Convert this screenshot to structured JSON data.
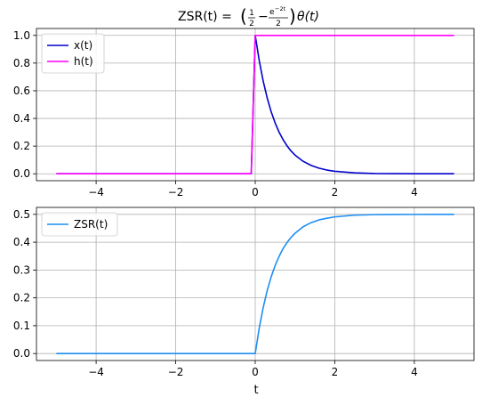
{
  "chart_data": [
    {
      "type": "line",
      "title": "ZSR(t) = (1/2 − e^(−2t)/2)θ(t)",
      "title_parts": {
        "prefix": "ZSR(t) = ",
        "frac1_num": "1",
        "frac1_den": "2",
        "minus": "−",
        "frac2_num": "e^{−2t}",
        "frac2_num_base": "e",
        "frac2_num_exp": "−2t",
        "frac2_den": "2",
        "suffix": "θ(t)"
      },
      "xlabel": "",
      "ylabel": "",
      "xlim": [
        -5.5,
        5.5
      ],
      "ylim": [
        -0.05,
        1.05
      ],
      "xticks": [
        -4,
        -2,
        0,
        2,
        4
      ],
      "xtick_labels": [
        "−4",
        "−2",
        "0",
        "2",
        "4"
      ],
      "yticks": [
        0.0,
        0.2,
        0.4,
        0.6,
        0.8,
        1.0
      ],
      "ytick_labels": [
        "0.0",
        "0.2",
        "0.4",
        "0.6",
        "0.8",
        "1.0"
      ],
      "grid": true,
      "legend_position": "top-left",
      "series": [
        {
          "name": "x(t)",
          "color": "#0000cc",
          "x": [
            -5,
            -0.1,
            0,
            0.1,
            0.2,
            0.3,
            0.4,
            0.5,
            0.6,
            0.7,
            0.8,
            0.9,
            1.0,
            1.2,
            1.4,
            1.6,
            1.8,
            2.0,
            2.5,
            3.0,
            3.5,
            4.0,
            4.5,
            5.0
          ],
          "y": [
            0,
            0,
            1.0,
            0.819,
            0.67,
            0.549,
            0.449,
            0.368,
            0.301,
            0.247,
            0.202,
            0.165,
            0.135,
            0.091,
            0.061,
            0.041,
            0.027,
            0.018,
            0.007,
            0.002,
            0.001,
            0.0003,
            0.0001,
            0.0
          ]
        },
        {
          "name": "h(t)",
          "color": "#ff00ff",
          "x": [
            -5,
            -0.1,
            0,
            5
          ],
          "y": [
            0,
            0,
            1,
            1
          ]
        }
      ]
    },
    {
      "type": "line",
      "title": "",
      "xlabel": "t",
      "ylabel": "",
      "xlim": [
        -5.5,
        5.5
      ],
      "ylim": [
        -0.025,
        0.525
      ],
      "xticks": [
        -4,
        -2,
        0,
        2,
        4
      ],
      "xtick_labels": [
        "−4",
        "−2",
        "0",
        "2",
        "4"
      ],
      "yticks": [
        0.0,
        0.1,
        0.2,
        0.3,
        0.4,
        0.5
      ],
      "ytick_labels": [
        "0.0",
        "0.1",
        "0.2",
        "0.3",
        "0.4",
        "0.5"
      ],
      "grid": true,
      "legend_position": "top-left",
      "series": [
        {
          "name": "ZSR(t)",
          "color": "#1f8ef1",
          "x": [
            -5,
            0,
            0.1,
            0.2,
            0.3,
            0.4,
            0.5,
            0.6,
            0.7,
            0.8,
            0.9,
            1.0,
            1.2,
            1.4,
            1.6,
            1.8,
            2.0,
            2.5,
            3.0,
            3.5,
            4.0,
            4.5,
            5.0
          ],
          "y": [
            0,
            0,
            0.091,
            0.165,
            0.226,
            0.275,
            0.316,
            0.349,
            0.377,
            0.399,
            0.417,
            0.432,
            0.455,
            0.47,
            0.48,
            0.486,
            0.491,
            0.497,
            0.499,
            0.4995,
            0.4998,
            0.4999,
            0.5
          ]
        }
      ]
    }
  ]
}
